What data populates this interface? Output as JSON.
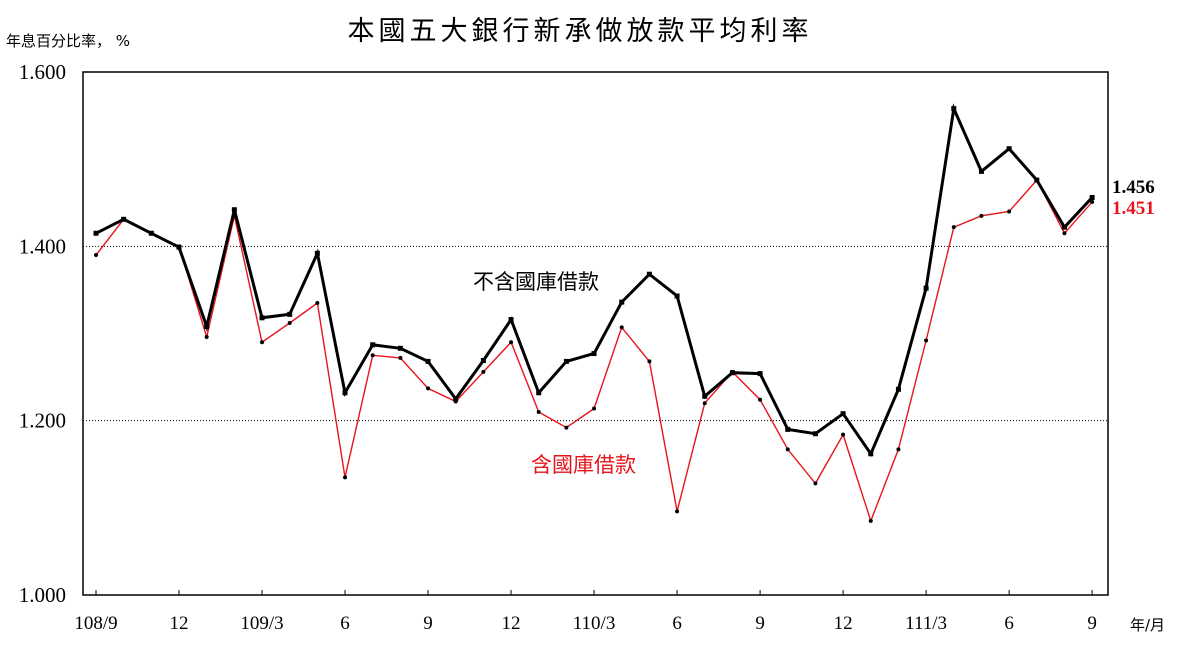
{
  "chart_data": {
    "type": "line",
    "title": "本國五大銀行新承做放款平均利率",
    "ylabel": "年息百分比率， %",
    "xlabel": "年/月",
    "ylim": [
      1.0,
      1.6
    ],
    "yticks": [
      "1.000",
      "1.200",
      "1.400",
      "1.600"
    ],
    "gridlines": [
      1.2,
      1.4
    ],
    "x_tick_labels": [
      "108/9",
      "12",
      "109/3",
      "6",
      "9",
      "12",
      "110/3",
      "6",
      "9",
      "12",
      "111/3",
      "6",
      "9"
    ],
    "x": [
      "108/9",
      "108/10",
      "108/11",
      "108/12",
      "109/1",
      "109/2",
      "109/3",
      "109/4",
      "109/5",
      "109/6",
      "109/7",
      "109/8",
      "109/9",
      "109/10",
      "109/11",
      "109/12",
      "110/1",
      "110/2",
      "110/3",
      "110/4",
      "110/5",
      "110/6",
      "110/7",
      "110/8",
      "110/9",
      "110/10",
      "110/11",
      "110/12",
      "111/1",
      "111/2",
      "111/3",
      "111/4",
      "111/5",
      "111/6",
      "111/7",
      "111/8",
      "111/9"
    ],
    "series": [
      {
        "name": "不含國庫借款",
        "color": "#000000",
        "values": [
          1.415,
          1.431,
          1.415,
          1.399,
          1.308,
          1.442,
          1.318,
          1.322,
          1.392,
          1.232,
          1.287,
          1.283,
          1.268,
          1.225,
          1.269,
          1.316,
          1.232,
          1.268,
          1.277,
          1.336,
          1.368,
          1.343,
          1.228,
          1.255,
          1.254,
          1.19,
          1.185,
          1.208,
          1.162,
          1.236,
          1.352,
          1.558,
          1.486,
          1.512,
          1.476,
          1.422,
          1.456
        ],
        "end_label": "1.456"
      },
      {
        "name": "含國庫借款",
        "color": "#e8141c",
        "values": [
          1.39,
          1.431,
          1.415,
          1.4,
          1.296,
          1.435,
          1.29,
          1.312,
          1.335,
          1.135,
          1.275,
          1.272,
          1.237,
          1.222,
          1.256,
          1.29,
          1.21,
          1.192,
          1.214,
          1.307,
          1.268,
          1.096,
          1.22,
          1.256,
          1.224,
          1.167,
          1.128,
          1.184,
          1.085,
          1.167,
          1.292,
          1.422,
          1.435,
          1.44,
          1.476,
          1.415,
          1.451
        ],
        "end_label": "1.451"
      }
    ]
  }
}
